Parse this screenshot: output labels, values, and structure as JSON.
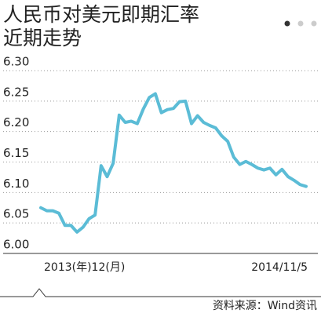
{
  "chart_data": {
    "type": "line",
    "title_lines": [
      "人民币对美元即期汇率",
      "近期走势"
    ],
    "source": "资料来源：Wind资讯",
    "categories": [
      "2013(年)12(月)",
      null,
      null,
      null,
      null,
      null,
      null,
      null,
      null,
      null,
      null,
      null,
      null,
      null,
      null,
      null,
      null,
      null,
      null,
      null,
      null,
      null,
      null,
      null,
      null,
      null,
      null,
      null,
      null,
      null,
      null,
      null,
      null,
      null,
      null,
      null,
      null,
      null,
      null,
      null,
      null,
      null,
      null,
      null,
      "2014/11/5"
    ],
    "series": [
      {
        "color": "#5bbcd6",
        "values": [
          6.075,
          6.07,
          6.07,
          6.066,
          6.046,
          6.046,
          6.035,
          6.043,
          6.057,
          6.063,
          6.144,
          6.126,
          6.148,
          6.227,
          6.215,
          6.217,
          6.213,
          6.237,
          6.256,
          6.262,
          6.231,
          6.236,
          6.238,
          6.249,
          6.25,
          6.213,
          6.226,
          6.215,
          6.21,
          6.206,
          6.193,
          6.184,
          6.158,
          6.146,
          6.151,
          6.146,
          6.14,
          6.137,
          6.14,
          6.129,
          6.138,
          6.126,
          6.12,
          6.113,
          6.11
        ]
      }
    ],
    "ylim": [
      6.0,
      6.3
    ],
    "yticks": [
      {
        "value": 6.0,
        "label": "6.00"
      },
      {
        "value": 6.05,
        "label": "6.05"
      },
      {
        "value": 6.1,
        "label": "6.10"
      },
      {
        "value": 6.15,
        "label": "6.15"
      },
      {
        "value": 6.2,
        "label": "6.20"
      },
      {
        "value": 6.25,
        "label": "6.25"
      },
      {
        "value": 6.3,
        "label": "6.30"
      }
    ],
    "grid": true
  }
}
